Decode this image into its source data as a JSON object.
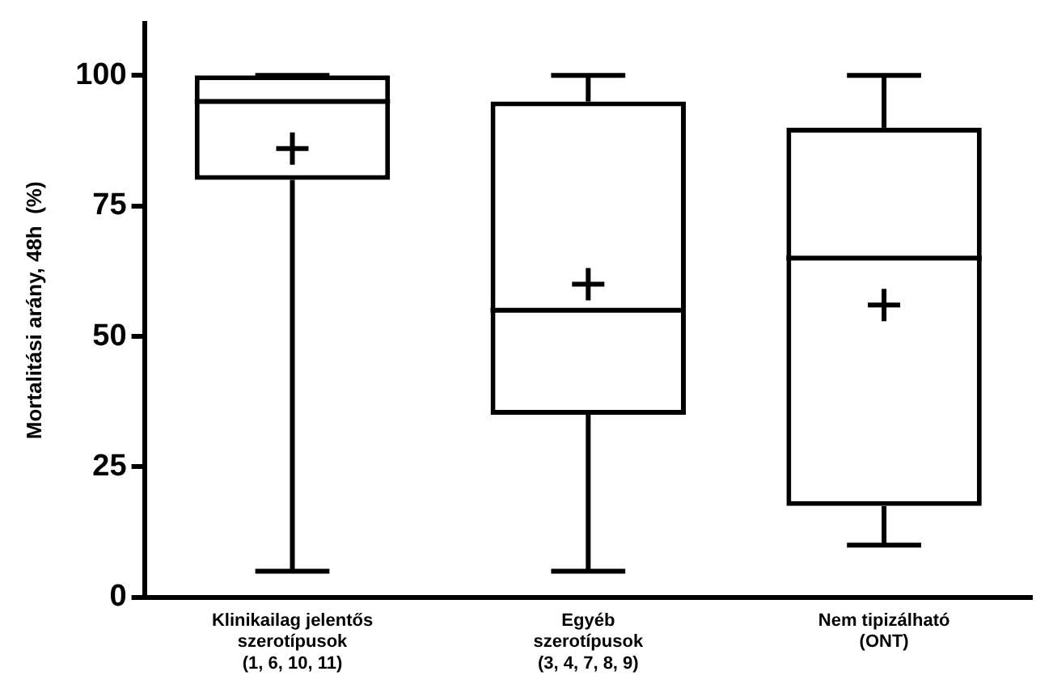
{
  "chart_data": {
    "type": "box",
    "ylabel": "Mortalitási arány, 48h  (%)",
    "categories": [
      "Klinikailag jelentős\nszerotípusok\n(1, 6, 10, 11)",
      "Egyéb\nszerotípusok\n(3, 4, 7, 8, 9)",
      "Nem tipizálható\n(ONT)"
    ],
    "boxes": [
      {
        "low": 5,
        "q1": 80,
        "median": 95,
        "q3": 100,
        "high": 100,
        "mean": 86
      },
      {
        "low": 5,
        "q1": 35,
        "median": 55,
        "q3": 95,
        "high": 100,
        "mean": 60
      },
      {
        "low": 10,
        "q1": 17.5,
        "median": 65,
        "q3": 90,
        "high": 100,
        "mean": 56
      }
    ],
    "ylim": [
      0,
      110
    ],
    "yticks": [
      0,
      25,
      50,
      75,
      100
    ],
    "grid": false,
    "legend": false,
    "color": "#000000"
  }
}
